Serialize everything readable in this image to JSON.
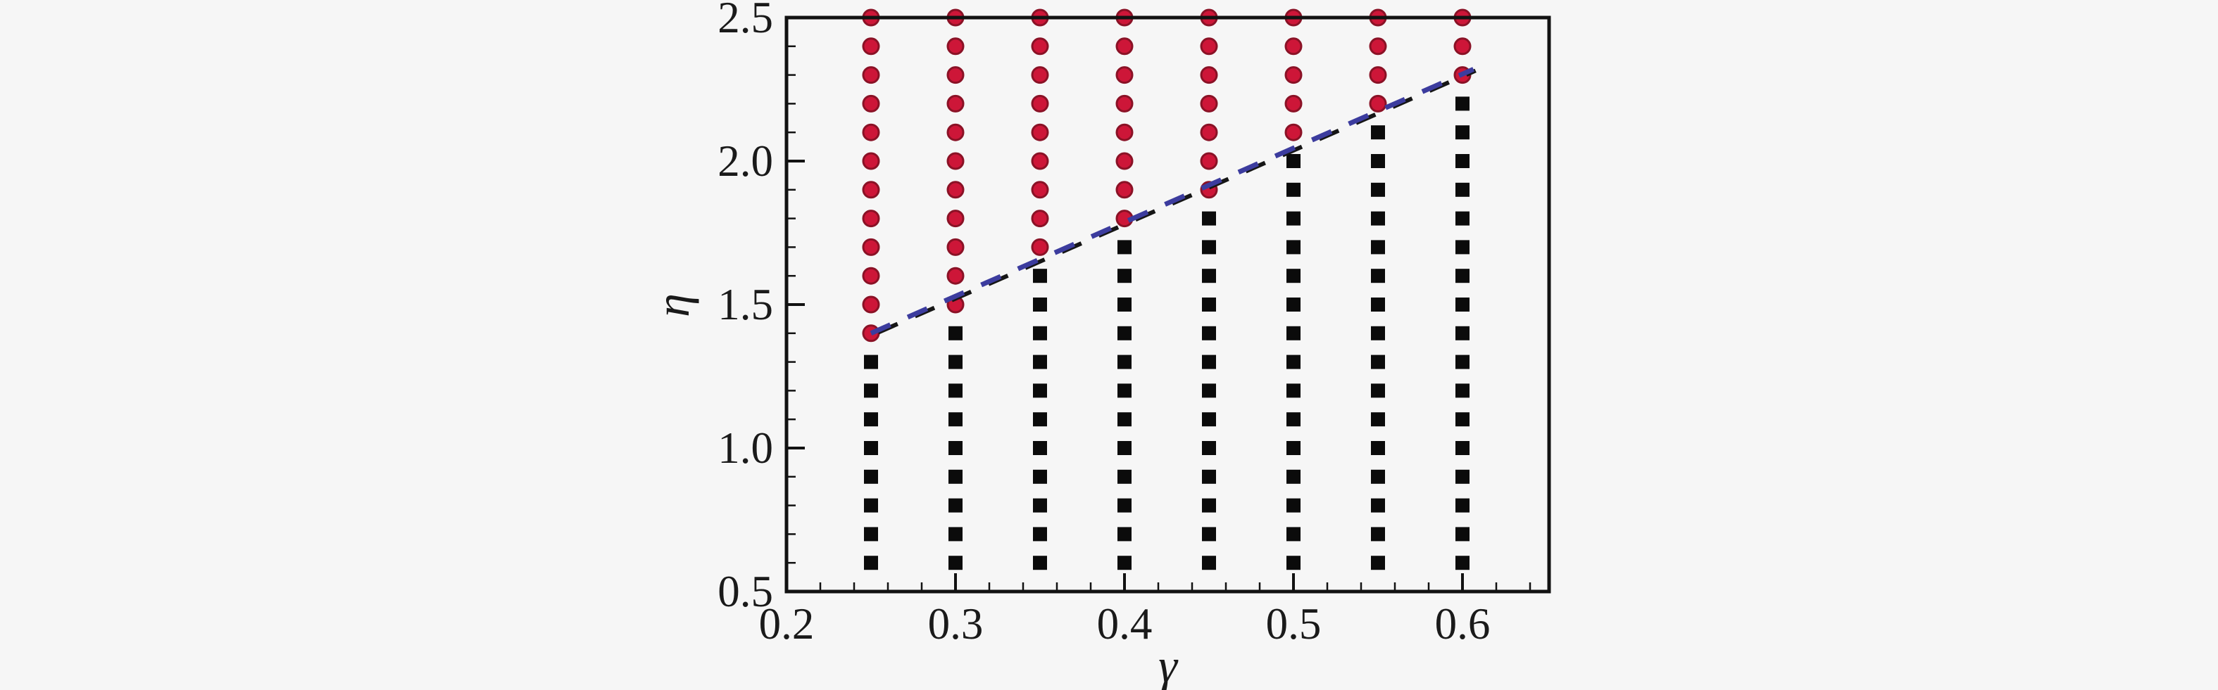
{
  "figure": {
    "background_color": "#f6f6f6",
    "frame_color": "#121212",
    "tick_label_color": "#1a1a1a"
  },
  "chart_data": {
    "type": "scatter",
    "title": "",
    "xlabel": "γ",
    "ylabel": "η",
    "xlim": [
      0.2,
      0.651
    ],
    "ylim": [
      0.5,
      2.5
    ],
    "grid": false,
    "legend": null,
    "x_major_ticks": [
      0.2,
      0.3,
      0.4,
      0.5,
      0.6
    ],
    "x_major_tick_labels": [
      "0.2",
      "0.3",
      "0.4",
      "0.5",
      "0.6"
    ],
    "x_minor_tick_step": 0.02,
    "y_major_ticks": [
      0.5,
      1.0,
      1.5,
      2.0,
      2.5
    ],
    "y_major_tick_labels": [
      "0.5",
      "1.0",
      "1.5",
      "2.0",
      "2.5"
    ],
    "y_minor_tick_step": 0.1,
    "eta_step": 0.1,
    "series": [
      {
        "name": "red-circle-phase",
        "marker": "circle",
        "fill_color": "#cd1638",
        "edge_color": "#8a1226",
        "columns": [
          {
            "gamma": 0.25,
            "eta_from": 1.4,
            "eta_to": 2.5
          },
          {
            "gamma": 0.3,
            "eta_from": 1.5,
            "eta_to": 2.5
          },
          {
            "gamma": 0.35,
            "eta_from": 1.7,
            "eta_to": 2.5
          },
          {
            "gamma": 0.4,
            "eta_from": 1.8,
            "eta_to": 2.5
          },
          {
            "gamma": 0.45,
            "eta_from": 1.9,
            "eta_to": 2.5
          },
          {
            "gamma": 0.5,
            "eta_from": 2.1,
            "eta_to": 2.5
          },
          {
            "gamma": 0.55,
            "eta_from": 2.2,
            "eta_to": 2.5
          },
          {
            "gamma": 0.6,
            "eta_from": 2.3,
            "eta_to": 2.5
          }
        ]
      },
      {
        "name": "black-square-phase",
        "marker": "square",
        "fill_color": "#0b0b0b",
        "edge_color": "#0b0b0b",
        "columns": [
          {
            "gamma": 0.25,
            "eta_from": 0.6,
            "eta_to": 1.3
          },
          {
            "gamma": 0.3,
            "eta_from": 0.6,
            "eta_to": 1.4
          },
          {
            "gamma": 0.35,
            "eta_from": 0.6,
            "eta_to": 1.6
          },
          {
            "gamma": 0.4,
            "eta_from": 0.6,
            "eta_to": 1.7
          },
          {
            "gamma": 0.45,
            "eta_from": 0.6,
            "eta_to": 1.8
          },
          {
            "gamma": 0.5,
            "eta_from": 0.6,
            "eta_to": 2.0
          },
          {
            "gamma": 0.55,
            "eta_from": 0.6,
            "eta_to": 2.1
          },
          {
            "gamma": 0.6,
            "eta_from": 0.6,
            "eta_to": 2.2
          }
        ]
      }
    ],
    "boundary_line": {
      "style": "dashed",
      "color": "#3c3c9e",
      "shadow_color": "#161616",
      "from": {
        "gamma": 0.25,
        "eta": 1.4
      },
      "to": {
        "gamma": 0.6065,
        "eta": 2.32
      }
    }
  }
}
